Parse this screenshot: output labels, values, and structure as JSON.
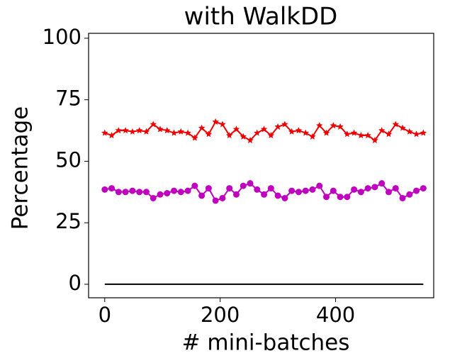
{
  "chart_data": {
    "type": "line",
    "title": "with WalkDD",
    "x_label": "# mini-batches",
    "y_label": "Percentage",
    "x": [
      0,
      12,
      24,
      36,
      48,
      60,
      72,
      84,
      96,
      108,
      120,
      132,
      144,
      156,
      168,
      180,
      192,
      204,
      216,
      228,
      240,
      252,
      264,
      276,
      288,
      300,
      312,
      324,
      336,
      348,
      360,
      372,
      384,
      396,
      408,
      420,
      432,
      444,
      456,
      468,
      480,
      492,
      504,
      516,
      528,
      540,
      552
    ],
    "series": [
      {
        "color": "#ee0000",
        "marker": "star",
        "values": [
          61.5,
          60.5,
          62.5,
          62.5,
          62,
          62.5,
          62,
          65,
          63,
          62.5,
          61.5,
          62,
          61.5,
          59.5,
          63.5,
          61,
          66,
          65,
          60.5,
          63,
          60,
          58.5,
          61.5,
          63,
          60.5,
          64,
          65,
          62,
          62.5,
          61.5,
          60,
          64.5,
          61.5,
          64.5,
          64,
          61,
          61.5,
          60.5,
          60.5,
          58.5,
          62.5,
          61,
          65,
          63.5,
          62,
          61,
          61.5
        ]
      },
      {
        "color": "#bf00bf",
        "marker": "circle",
        "values": [
          38.5,
          39,
          37.5,
          37.5,
          38,
          37.5,
          37.5,
          35,
          36.5,
          37,
          38,
          37.5,
          38,
          40,
          36,
          39,
          34,
          35,
          39,
          36.5,
          40,
          41,
          38.5,
          36.5,
          39,
          36,
          35,
          38,
          37.5,
          38,
          38.5,
          40,
          35.5,
          38,
          35.5,
          35.5,
          38.5,
          37.5,
          39,
          39.5,
          41,
          37.5,
          39,
          35,
          36.5,
          38,
          39
        ]
      },
      {
        "color": "#000000",
        "marker": "none",
        "values": [
          0,
          0,
          0,
          0,
          0,
          0,
          0,
          0,
          0,
          0,
          0,
          0,
          0,
          0,
          0,
          0,
          0,
          0,
          0,
          0,
          0,
          0,
          0,
          0,
          0,
          0,
          0,
          0,
          0,
          0,
          0,
          0,
          0,
          0,
          0,
          0,
          0,
          0,
          0,
          0,
          0,
          0,
          0,
          0,
          0,
          0,
          0
        ]
      }
    ],
    "xlim": [
      -28,
      570
    ],
    "ylim": [
      -5.5,
      102
    ],
    "xticks": [
      0,
      200,
      400
    ],
    "yticks": [
      0,
      25,
      50,
      75,
      100
    ]
  }
}
